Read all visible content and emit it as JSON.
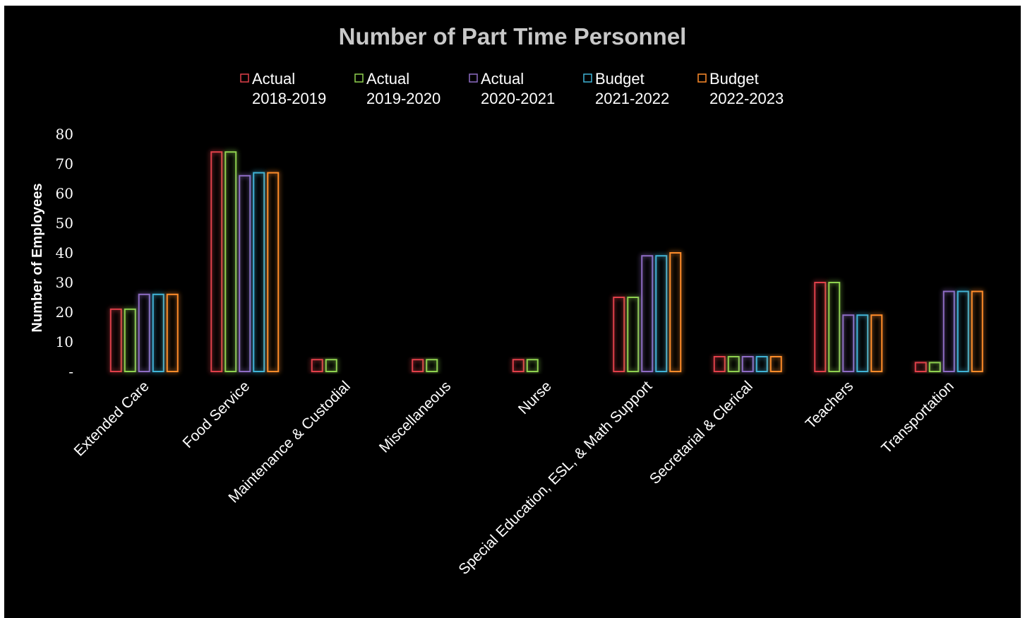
{
  "chart_data": {
    "type": "bar",
    "title": "Number of Part Time Personnel",
    "xlabel": "",
    "ylabel": "Number of Employees",
    "ylim": [
      0,
      80
    ],
    "y_ticks": [
      "-",
      "10",
      "20",
      "30",
      "40",
      "50",
      "60",
      "70",
      "80"
    ],
    "grid": false,
    "legend_position": "top",
    "categories": [
      "Extended Care",
      "Food Service",
      "Maintenance & Custodial",
      "Miscellaneous",
      "Nurse",
      "Special Education, ESL, & Math Support",
      "Secretarial & Clerical",
      "Teachers",
      "Transportation"
    ],
    "series": [
      {
        "name": "Actual 2018-2019",
        "legend_lines": [
          "Actual",
          "2018-2019"
        ],
        "color": "#e0404a",
        "values": [
          21,
          74,
          4,
          4,
          4,
          25,
          5,
          30,
          3
        ]
      },
      {
        "name": "Actual 2019-2020",
        "legend_lines": [
          "Actual",
          "2019-2020"
        ],
        "color": "#8fd14f",
        "values": [
          21,
          74,
          4,
          4,
          4,
          25,
          5,
          30,
          3
        ]
      },
      {
        "name": "Actual 2020-2021",
        "legend_lines": [
          "Actual",
          "2020-2021"
        ],
        "color": "#8e6cc4",
        "values": [
          26,
          66,
          0,
          0,
          0,
          39,
          5,
          19,
          27
        ]
      },
      {
        "name": "Budget 2021-2022",
        "legend_lines": [
          "Budget",
          "2021-2022"
        ],
        "color": "#3fb3d6",
        "values": [
          26,
          67,
          0,
          0,
          0,
          39,
          5,
          19,
          27
        ]
      },
      {
        "name": "Budget 2022-2023",
        "legend_lines": [
          "Budget",
          "2022-2023"
        ],
        "color": "#ff8c2a",
        "values": [
          26,
          67,
          0,
          0,
          0,
          40,
          5,
          19,
          27
        ]
      }
    ]
  }
}
